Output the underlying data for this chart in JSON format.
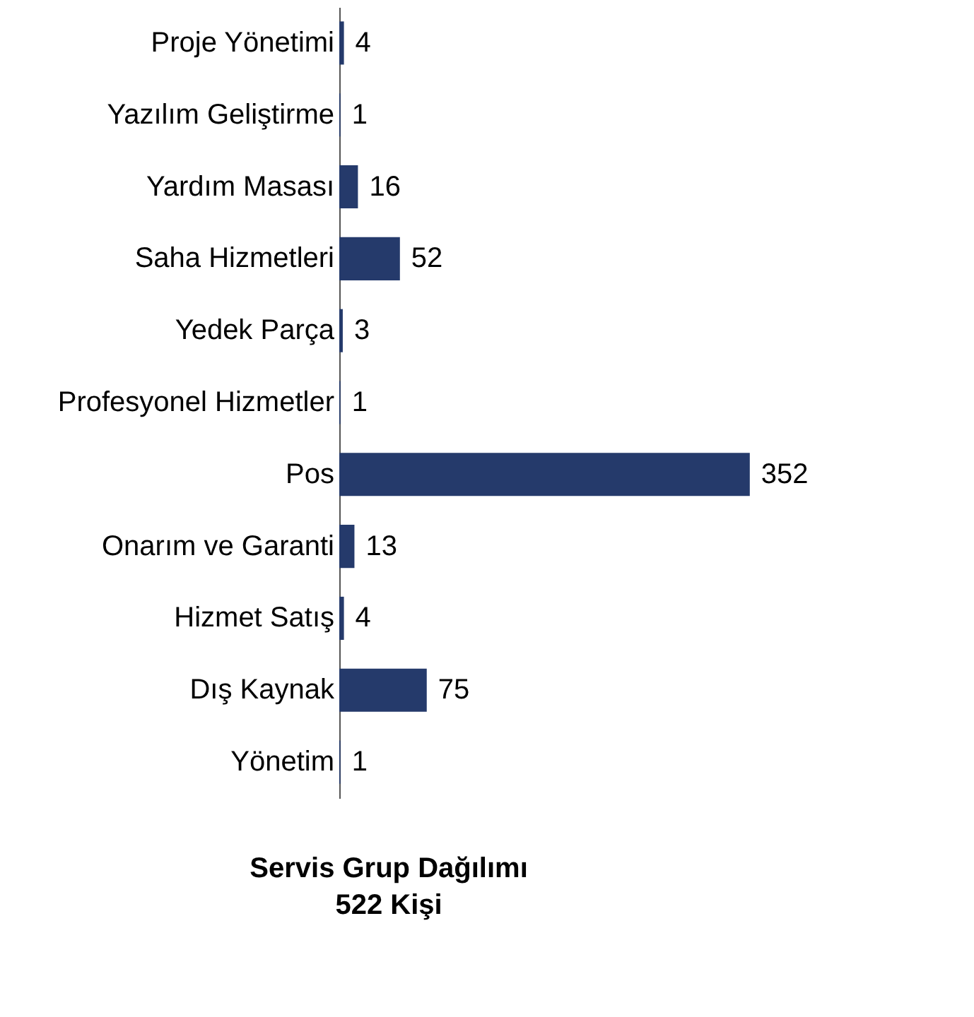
{
  "chart_data": {
    "type": "bar",
    "orientation": "horizontal",
    "title": "Servis Grup Dağılımı",
    "subtitle": "522 Kişi",
    "categories": [
      "Proje Yönetimi",
      "Yazılım Geliştirme",
      "Yardım Masası",
      "Saha Hizmetleri",
      "Yedek Parça",
      "Profesyonel Hizmetler",
      "Pos",
      "Onarım ve Garanti",
      "Hizmet Satış",
      "Dış Kaynak",
      "Yönetim"
    ],
    "values": [
      4,
      1,
      16,
      52,
      3,
      1,
      352,
      13,
      4,
      75,
      1
    ],
    "color": "#253a6b",
    "data_labels": true
  }
}
